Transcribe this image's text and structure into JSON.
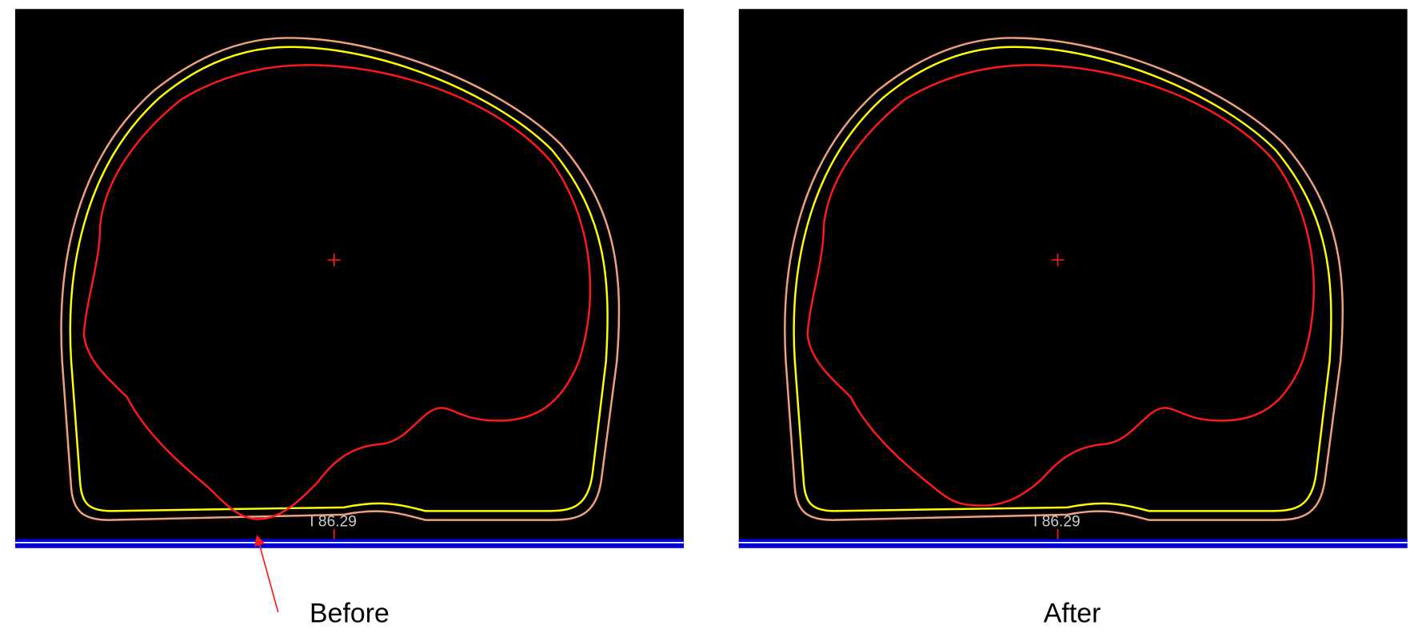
{
  "panels": [
    {
      "slice_label": "I 86.29",
      "caption": "Before"
    },
    {
      "slice_label": "I 86.29",
      "caption": "After"
    }
  ]
}
